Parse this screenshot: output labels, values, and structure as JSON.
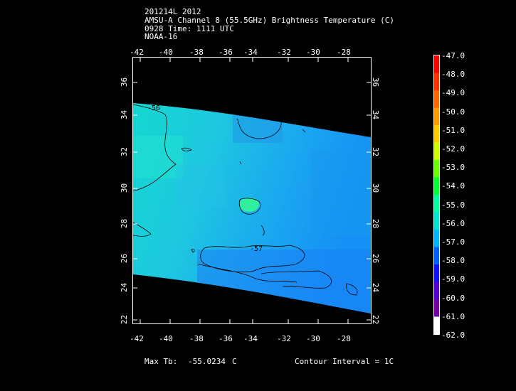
{
  "header": {
    "line1": "201214L 2012",
    "line2": "AMSU-A Channel 8 (55.5GHz) Brightness Temperature (C)",
    "line3": "0928 Time: 1111 UTC",
    "line4": "NOAA-16"
  },
  "axes": {
    "lon_ticks": [
      "-42",
      "-40",
      "-38",
      "-36",
      "-34",
      "-32",
      "-30",
      "-28"
    ],
    "lat_ticks": [
      "36",
      "34",
      "32",
      "30",
      "28",
      "26",
      "24",
      "22"
    ]
  },
  "contour_labels": [
    "-56",
    "-57"
  ],
  "colorbar": {
    "labels": [
      "-47.0",
      "-48.0",
      "-49.0",
      "-50.0",
      "-51.0",
      "-52.0",
      "-53.0",
      "-54.0",
      "-55.0",
      "-56.0",
      "-57.0",
      "-58.0",
      "-59.0",
      "-60.0",
      "-61.0",
      "-62.0"
    ],
    "colors": [
      "#ff0000",
      "#ff3300",
      "#ff6600",
      "#ff9900",
      "#ffcc00",
      "#ccff00",
      "#66ff00",
      "#00ff33",
      "#00ff99",
      "#00e5d0",
      "#00b4ff",
      "#0060ff",
      "#1010ff",
      "#5000d0",
      "#7000a0",
      "#ffffff"
    ]
  },
  "footer": {
    "max_label": "Max Tb:",
    "max_value": "-55.0234",
    "unit": "C",
    "contour_interval": "Contour Interval = 1C"
  }
}
